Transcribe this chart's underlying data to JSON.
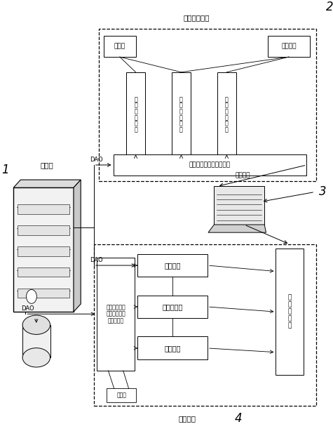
{
  "bg_color": "#ffffff",
  "fig_width": 4.75,
  "fig_height": 6.31,
  "dpi": 100,
  "label1": "知识库",
  "label1_num": "1",
  "label2": "数据管理模块",
  "label2_num": "2",
  "label3": "软件界面",
  "label3_num": "3",
  "label4": "诊断模块",
  "label4_num": "4",
  "box_gudzhang": "故障树",
  "box_zhuanjia": "专家经验",
  "box_col1": "电\n控\n系\n统\n故\n障",
  "box_col2": "历\n史\n故\n障\n知\n识",
  "box_col3": "机\n械\n设\n备\n故\n障",
  "box_zhishi": "知识管理（修改、更新）",
  "box_jieshi": "解释机制",
  "box_dongtai": "动态数据库",
  "box_weixiu": "维修指导",
  "box_jiaohushi": "交\n互\n式\n诊\n断",
  "box_tuilijizhe": "基于不同知识\n表示方式下的\n推理机设计",
  "box_tulijj": "推理机",
  "dao_text": "DAO"
}
